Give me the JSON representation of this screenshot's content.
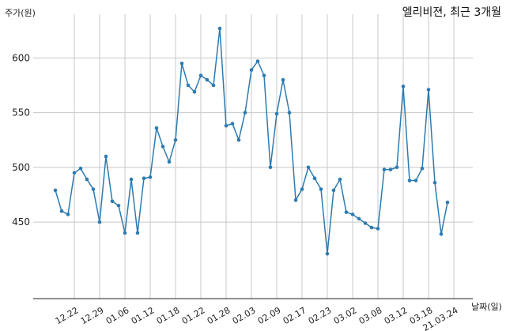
{
  "chart_data": {
    "type": "line",
    "title": "엘리비젼, 최근 3개월",
    "xlabel": "날짜(일)",
    "ylabel": "주가(원)",
    "ylim": [
      380,
      640
    ],
    "yticks": [
      450,
      500,
      550,
      600
    ],
    "grid": true,
    "line_color": "#2d7bb0",
    "grid_color": "#c8c8c8",
    "xticks": [
      {
        "label": "12.22",
        "index": 3
      },
      {
        "label": "12.29",
        "index": 7
      },
      {
        "label": "01.06",
        "index": 11
      },
      {
        "label": "01.12",
        "index": 15
      },
      {
        "label": "01.18",
        "index": 19
      },
      {
        "label": "01.22",
        "index": 23
      },
      {
        "label": "01.28",
        "index": 27
      },
      {
        "label": "02.03",
        "index": 31
      },
      {
        "label": "02.09",
        "index": 35
      },
      {
        "label": "02.17",
        "index": 39
      },
      {
        "label": "02.23",
        "index": 43
      },
      {
        "label": "03.02",
        "index": 47
      },
      {
        "label": "03.08",
        "index": 51
      },
      {
        "label": "03.12",
        "index": 55
      },
      {
        "label": "03.18",
        "index": 59
      },
      {
        "label": "21.03.24",
        "index": 63
      }
    ],
    "values": [
      479,
      460,
      457,
      495,
      499,
      489,
      480,
      450,
      510,
      469,
      465,
      440,
      489,
      440,
      490,
      491,
      536,
      519,
      505,
      525,
      595,
      575,
      569,
      584,
      580,
      575,
      627,
      538,
      540,
      525,
      550,
      589,
      597,
      584,
      500,
      549,
      580,
      550,
      470,
      480,
      500,
      490,
      480,
      421,
      479,
      489,
      459,
      457,
      453,
      449,
      445,
      444,
      498,
      498,
      500,
      574,
      488,
      488,
      499,
      571,
      486,
      439,
      468
    ]
  }
}
